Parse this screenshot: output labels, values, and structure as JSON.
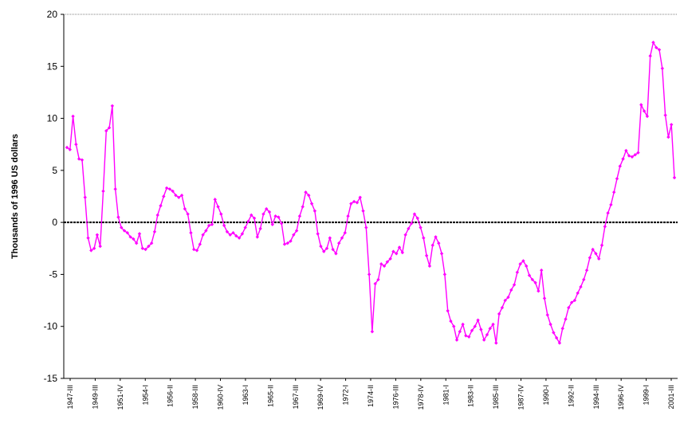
{
  "chart_data": {
    "type": "line",
    "title": "",
    "xlabel": "",
    "ylabel": "Thousands of 1996 US dollars",
    "ylim": [
      -15,
      20
    ],
    "yticks": [
      20,
      15,
      10,
      5,
      0,
      -5,
      -10,
      -15
    ],
    "xtick_labels": [
      "1947-III",
      "1949-III",
      "1951-IV",
      "1954-I",
      "1956-II",
      "1958-III",
      "1960-IV",
      "1963-I",
      "1965-II",
      "1967-III",
      "1969-IV",
      "1972-I",
      "1974-II",
      "1976-III",
      "1978-IV",
      "1981-I",
      "1983-II",
      "1985-III",
      "1987-IV",
      "1990-I",
      "1992-II",
      "1994-III",
      "1996-IV",
      "1999-I",
      "2001-III"
    ],
    "grid": false,
    "zero_line": true,
    "series": [
      {
        "color": "#ff00ff",
        "marker": "diamond",
        "values": [
          7.2,
          7.0,
          10.2,
          7.5,
          6.1,
          6.0,
          2.4,
          -1.5,
          -2.7,
          -2.5,
          -1.2,
          -2.3,
          3.0,
          8.8,
          9.1,
          11.2,
          3.2,
          0.5,
          -0.5,
          -0.8,
          -1.0,
          -1.4,
          -1.6,
          -2.0,
          -1.1,
          -2.5,
          -2.6,
          -2.3,
          -2.0,
          -0.9,
          0.7,
          1.6,
          2.5,
          3.3,
          3.2,
          3.0,
          2.6,
          2.4,
          2.6,
          1.3,
          0.8,
          -1.0,
          -2.6,
          -2.7,
          -2.1,
          -1.2,
          -0.8,
          -0.3,
          -0.2,
          2.2,
          1.5,
          0.8,
          -0.3,
          -0.9,
          -1.2,
          -1.0,
          -1.3,
          -1.5,
          -1.1,
          -0.5,
          0.1,
          0.7,
          0.4,
          -1.4,
          -0.6,
          0.8,
          1.3,
          1.0,
          -0.2,
          0.6,
          0.5,
          -0.1,
          -2.1,
          -2.0,
          -1.8,
          -1.2,
          -0.8,
          0.6,
          1.5,
          2.9,
          2.6,
          1.8,
          1.1,
          -1.1,
          -2.3,
          -2.8,
          -2.5,
          -1.5,
          -2.6,
          -3.0,
          -2.0,
          -1.5,
          -1.0,
          0.6,
          1.8,
          2.0,
          1.9,
          2.4,
          1.1,
          -0.5,
          -5.0,
          -10.5,
          -5.9,
          -5.5,
          -4.0,
          -4.2,
          -3.8,
          -3.5,
          -2.8,
          -3.0,
          -2.4,
          -2.9,
          -1.2,
          -0.6,
          -0.1,
          0.8,
          0.4,
          -0.5,
          -1.5,
          -3.2,
          -4.2,
          -2.2,
          -1.4,
          -2.0,
          -3.0,
          -5.0,
          -8.5,
          -9.5,
          -10.0,
          -11.3,
          -10.5,
          -9.8,
          -10.9,
          -11.0,
          -10.4,
          -10.0,
          -9.4,
          -10.3,
          -11.3,
          -10.8,
          -10.2,
          -9.8,
          -11.6,
          -8.8,
          -8.2,
          -7.5,
          -7.2,
          -6.5,
          -6.0,
          -4.8,
          -4.0,
          -3.7,
          -4.2,
          -5.1,
          -5.5,
          -5.8,
          -6.6,
          -4.6,
          -7.3,
          -8.9,
          -9.8,
          -10.6,
          -11.1,
          -11.6,
          -10.2,
          -9.3,
          -8.2,
          -7.7,
          -7.5,
          -6.8,
          -6.2,
          -5.5,
          -4.6,
          -3.4,
          -2.6,
          -3.0,
          -3.5,
          -2.2,
          -0.4,
          0.9,
          1.7,
          2.9,
          4.2,
          5.4,
          6.1,
          6.9,
          6.4,
          6.3,
          6.5,
          6.7,
          11.3,
          10.7,
          10.2,
          16.0,
          17.3,
          16.8,
          16.6,
          14.8,
          10.3,
          8.2,
          9.4,
          4.3
        ]
      }
    ]
  }
}
